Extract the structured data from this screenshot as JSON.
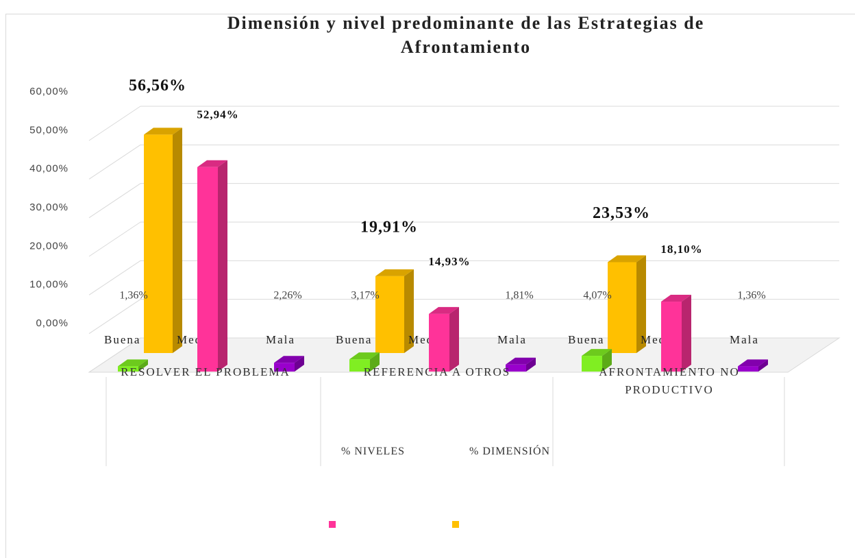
{
  "chart_data": {
    "type": "bar3d",
    "title": "Dimensión y nivel predominante de las Estrategias de Afrontamiento",
    "categories": [
      "RESOLVER EL PROBLEMA",
      "REFERENCIA A OTROS",
      "AFRONTAMIENTO NO PRODUCTIVO"
    ],
    "levels": [
      "Buena",
      "Media",
      "Mala"
    ],
    "series": [
      {
        "name": "% NIVELES",
        "color": "#ff3399",
        "level_colors": [
          "#80ee22",
          "#ff3399",
          "#9900cc"
        ],
        "values": [
          [
            1.36,
            52.94,
            2.26
          ],
          [
            3.17,
            14.93,
            1.81
          ],
          [
            4.07,
            18.1,
            1.36
          ]
        ],
        "value_labels": [
          [
            "1,36%",
            "52,94%",
            "2,26%"
          ],
          [
            "3,17%",
            "14,93%",
            "1,81%"
          ],
          [
            "4,07%",
            "18,10%",
            "1,36%"
          ]
        ]
      },
      {
        "name": "% DIMENSIÓN",
        "color": "#ffc000",
        "values": [
          56.56,
          19.91,
          23.53
        ],
        "value_labels": [
          "56,56%",
          "19,91%",
          "23,53%"
        ]
      }
    ],
    "ylim": [
      0,
      60
    ],
    "yticks": [
      {
        "value": 0,
        "label": "0,00%"
      },
      {
        "value": 10,
        "label": "10,00%"
      },
      {
        "value": 20,
        "label": "20,00%"
      },
      {
        "value": 30,
        "label": "30,00%"
      },
      {
        "value": 40,
        "label": "40,00%"
      },
      {
        "value": 50,
        "label": "50,00%"
      },
      {
        "value": 60,
        "label": "60,00%"
      }
    ],
    "grid": true
  }
}
